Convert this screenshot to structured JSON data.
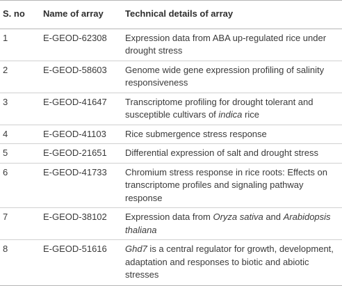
{
  "table": {
    "columns": [
      "S. no",
      "Name of array",
      "Technical details of array"
    ],
    "rows": [
      {
        "sno": "1",
        "name": "E-GEOD-62308",
        "details": [
          {
            "text": "Expression data from ABA up-regulated rice under drought stress"
          }
        ]
      },
      {
        "sno": "2",
        "name": "E-GEOD-58603",
        "details": [
          {
            "text": "Genome wide gene expression profiling of salinity responsiveness"
          }
        ]
      },
      {
        "sno": "3",
        "name": "E-GEOD-41647",
        "details": [
          {
            "text": "Transcriptome profiling for drought tolerant and susceptible cultivars of "
          },
          {
            "text": "indica",
            "italic": true
          },
          {
            "text": " rice"
          }
        ]
      },
      {
        "sno": "4",
        "name": "E-GEOD-41103",
        "details": [
          {
            "text": "Rice submergence stress response"
          }
        ]
      },
      {
        "sno": "5",
        "name": "E-GEOD-21651",
        "details": [
          {
            "text": "Differential expression of salt and drought stress"
          }
        ]
      },
      {
        "sno": "6",
        "name": "E-GEOD-41733",
        "details": [
          {
            "text": "Chromium stress response in rice roots: Effects on transcriptome profiles and signaling pathway response"
          }
        ]
      },
      {
        "sno": "7",
        "name": "E-GEOD-38102",
        "details": [
          {
            "text": "Expression data from "
          },
          {
            "text": "Oryza sativa",
            "italic": true
          },
          {
            "text": " and "
          },
          {
            "text": "Arabidopsis thaliana",
            "italic": true
          }
        ]
      },
      {
        "sno": "8",
        "name": "E-GEOD-51616",
        "details": [
          {
            "text": "Ghd7",
            "italic": true
          },
          {
            "text": " is a central regulator for growth, development, adaptation and responses to biotic and abiotic stresses"
          }
        ]
      }
    ]
  }
}
